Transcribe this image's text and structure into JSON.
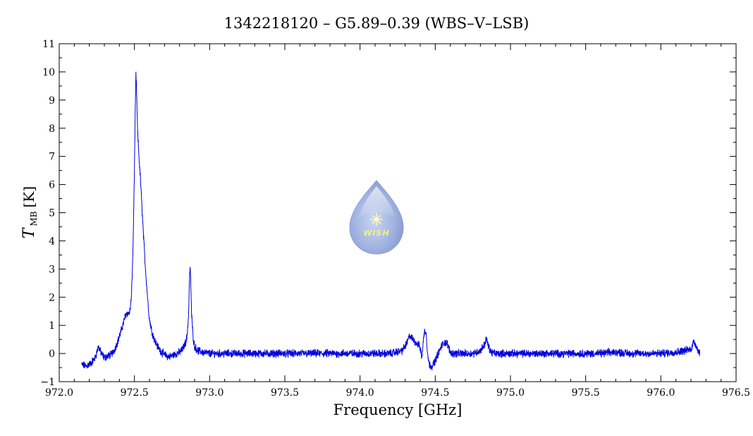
{
  "chart_data": {
    "type": "line",
    "title": "1342218120 – G5.89–0.39 (WBS–V–LSB)",
    "xlabel": "Frequency [GHz]",
    "ylabel": {
      "symbol": "T",
      "subscript": "MB",
      "unit": "[K]"
    },
    "xlim": [
      972.0,
      976.5
    ],
    "ylim": [
      -1,
      11
    ],
    "x_ticks": [
      "972.0",
      "972.5",
      "973.0",
      "973.5",
      "974.0",
      "974.5",
      "975.0",
      "975.5",
      "976.0",
      "976.5"
    ],
    "y_ticks": [
      "−1",
      "0",
      "1",
      "2",
      "3",
      "4",
      "5",
      "6",
      "7",
      "8",
      "9",
      "10",
      "11"
    ],
    "grid": false,
    "legend": "none",
    "series": [
      {
        "color": "#0000dd",
        "x": [
          972.15,
          972.18,
          972.21,
          972.24,
          972.26,
          972.28,
          972.3,
          972.32,
          972.34,
          972.36,
          972.38,
          972.4,
          972.42,
          972.43,
          972.44,
          972.45,
          972.46,
          972.47,
          972.48,
          972.49,
          972.5,
          972.505,
          972.51,
          972.515,
          972.52,
          972.53,
          972.54,
          972.55,
          972.56,
          972.57,
          972.58,
          972.59,
          972.6,
          972.62,
          972.64,
          972.66,
          972.68,
          972.7,
          972.72,
          972.74,
          972.76,
          972.78,
          972.8,
          972.82,
          972.84,
          972.85,
          972.86,
          972.865,
          972.87,
          972.875,
          972.88,
          972.89,
          972.9,
          972.92,
          972.95,
          973.0,
          973.1,
          973.2,
          973.3,
          973.4,
          973.5,
          973.6,
          973.7,
          973.8,
          973.9,
          974.0,
          974.1,
          974.2,
          974.28,
          974.31,
          974.33,
          974.35,
          974.37,
          974.39,
          974.4,
          974.41,
          974.42,
          974.43,
          974.44,
          974.45,
          974.46,
          974.48,
          974.5,
          974.52,
          974.54,
          974.56,
          974.58,
          974.6,
          974.62,
          974.65,
          974.7,
          974.75,
          974.8,
          974.83,
          974.84,
          974.85,
          974.87,
          974.9,
          975.0,
          975.2,
          975.4,
          975.6,
          975.7,
          975.8,
          976.0,
          976.1,
          976.15,
          976.2,
          976.22,
          976.24,
          976.26
        ],
        "y": [
          -0.4,
          -0.45,
          -0.35,
          -0.15,
          0.25,
          0.0,
          -0.15,
          -0.1,
          -0.05,
          0.05,
          0.3,
          0.6,
          0.95,
          1.15,
          1.35,
          1.45,
          1.4,
          1.5,
          2.0,
          3.6,
          6.5,
          8.5,
          9.9,
          9.2,
          8.0,
          7.0,
          6.2,
          5.2,
          4.2,
          3.3,
          2.5,
          1.8,
          1.2,
          0.7,
          0.4,
          0.2,
          0.05,
          -0.05,
          -0.1,
          -0.1,
          -0.05,
          0.0,
          0.05,
          0.15,
          0.4,
          0.6,
          1.4,
          2.5,
          3.1,
          2.4,
          1.4,
          0.6,
          0.25,
          0.1,
          0.05,
          0.0,
          0.0,
          0.0,
          0.0,
          0.0,
          0.0,
          0.0,
          0.0,
          0.0,
          0.0,
          0.0,
          0.0,
          0.0,
          0.1,
          0.35,
          0.65,
          0.5,
          0.4,
          0.3,
          0.2,
          -0.15,
          0.4,
          0.85,
          0.7,
          -0.05,
          -0.4,
          -0.45,
          -0.25,
          0.0,
          0.25,
          0.4,
          0.35,
          0.05,
          0.0,
          0.0,
          0.0,
          0.0,
          0.1,
          0.35,
          0.55,
          0.3,
          0.05,
          0.0,
          0.0,
          0.0,
          0.0,
          0.0,
          0.05,
          0.0,
          0.0,
          0.05,
          0.1,
          0.15,
          0.45,
          0.2,
          0.0
        ]
      }
    ]
  },
  "logo": {
    "text": "WISH"
  }
}
